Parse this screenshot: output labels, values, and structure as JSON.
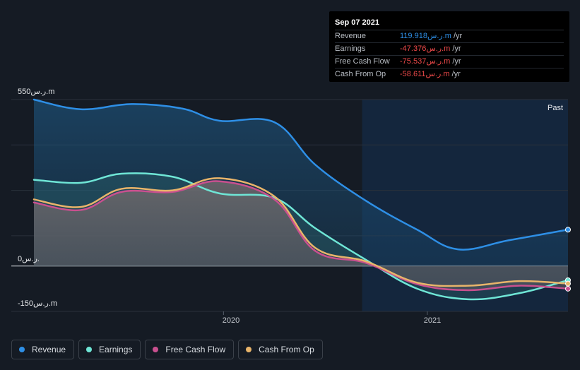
{
  "colors": {
    "revenue": "#2e8fe6",
    "earnings": "#6fe6d6",
    "free_cash_flow": "#c9508f",
    "cash_from_op": "#e8b46a",
    "negative": "#f04a4a"
  },
  "tooltip": {
    "date": "Sep 07 2021",
    "rows": [
      {
        "name": "Revenue",
        "value": "119.918ر.س.m",
        "unit": "/yr"
      },
      {
        "name": "Earnings",
        "value": "-47.376ر.س.m",
        "unit": "/yr"
      },
      {
        "name": "Free Cash Flow",
        "value": "-75.537ر.س.m",
        "unit": "/yr"
      },
      {
        "name": "Cash From Op",
        "value": "-58.611ر.س.m",
        "unit": "/yr"
      }
    ]
  },
  "past_label": "Past",
  "legend": [
    {
      "label": "Revenue",
      "key": "revenue"
    },
    {
      "label": "Earnings",
      "key": "earnings"
    },
    {
      "label": "Free Cash Flow",
      "key": "free_cash_flow"
    },
    {
      "label": "Cash From Op",
      "key": "cash_from_op"
    }
  ],
  "chart_data": {
    "type": "area",
    "ylim": [
      -150,
      550
    ],
    "y_tick_labels": [
      "550ر.س.m",
      "0ر.س.",
      "-150ر.س.m"
    ],
    "x_tick_labels": [
      "2020",
      "2021"
    ],
    "x_ticks": [
      2020.0,
      2021.0
    ],
    "xlim": [
      2019.07,
      2021.69
    ],
    "past_start": 2020.68,
    "series": [
      {
        "name": "Revenue",
        "key": "revenue",
        "x": [
          2019.07,
          2019.3,
          2019.55,
          2019.8,
          2019.98,
          2020.25,
          2020.45,
          2020.7,
          2020.95,
          2021.15,
          2021.4,
          2021.69
        ],
        "y": [
          550,
          518,
          535,
          520,
          480,
          475,
          335,
          215,
          120,
          55,
          85,
          120
        ]
      },
      {
        "name": "Earnings",
        "key": "earnings",
        "x": [
          2019.07,
          2019.3,
          2019.5,
          2019.75,
          2019.98,
          2020.25,
          2020.45,
          2020.7,
          2020.95,
          2021.2,
          2021.45,
          2021.69
        ],
        "y": [
          285,
          275,
          305,
          295,
          240,
          225,
          125,
          20,
          -75,
          -110,
          -90,
          -47
        ]
      },
      {
        "name": "Free Cash Flow",
        "key": "free_cash_flow",
        "x": [
          2019.07,
          2019.3,
          2019.5,
          2019.75,
          2019.98,
          2020.25,
          2020.45,
          2020.7,
          2020.95,
          2021.2,
          2021.45,
          2021.69
        ],
        "y": [
          210,
          185,
          245,
          245,
          280,
          220,
          50,
          10,
          -60,
          -80,
          -65,
          -75
        ]
      },
      {
        "name": "Cash From Op",
        "key": "cash_from_op",
        "x": [
          2019.07,
          2019.3,
          2019.5,
          2019.75,
          2019.98,
          2020.25,
          2020.45,
          2020.7,
          2020.95,
          2021.2,
          2021.45,
          2021.69
        ],
        "y": [
          220,
          195,
          255,
          250,
          290,
          230,
          60,
          15,
          -55,
          -65,
          -50,
          -58
        ]
      }
    ],
    "legend_position": "bottom-left",
    "grid": true
  }
}
